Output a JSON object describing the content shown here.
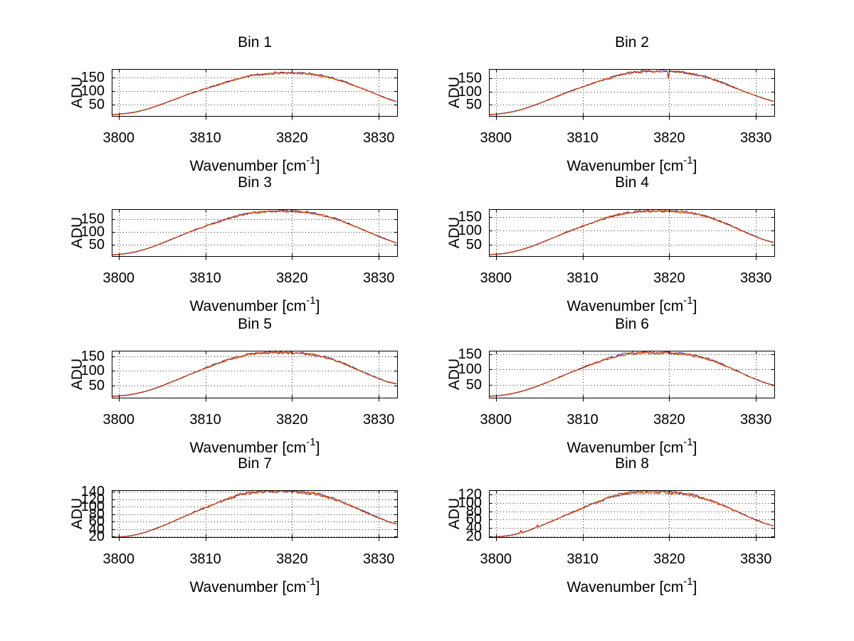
{
  "style": {
    "background": "#ffffff",
    "axis_color": "#000000",
    "grid_color": "#3c3c3c",
    "line_color_primary": "#e4731c",
    "line_color_secondary": "#c2371a",
    "line_color_under": "#2a2a9a"
  },
  "chart_data": {
    "type": "line",
    "layout": "4 rows x 2 columns grid of subplots",
    "grid": "dotted, on",
    "legend": "none",
    "ylabel": "ADU",
    "xlabel": "Wavenumber [cm^-1]",
    "xlabel_parts": [
      "Wavenumber [cm",
      "-1",
      "]"
    ],
    "xticks": [
      3800,
      3810,
      3820,
      3830
    ],
    "xlim": [
      3799.2,
      3832.2
    ],
    "x": [
      3799.2,
      3800,
      3801,
      3802,
      3803,
      3804,
      3805,
      3806,
      3807,
      3808,
      3809,
      3810,
      3811,
      3812,
      3813,
      3814,
      3815,
      3816,
      3817,
      3818,
      3819,
      3820,
      3821,
      3822,
      3823,
      3824,
      3825,
      3826,
      3827,
      3828,
      3829,
      3830,
      3831,
      3832
    ],
    "charts": [
      {
        "title": "Bin 1",
        "yticks": [
          50,
          100,
          150
        ],
        "ylim": [
          5,
          181
        ],
        "y": [
          12,
          14,
          17,
          22,
          30,
          40,
          51,
          63,
          75,
          87,
          98,
          108,
          118,
          128,
          138,
          147,
          154,
          160,
          163,
          165,
          166,
          166,
          165,
          163,
          158,
          152,
          144,
          134,
          122,
          110,
          97,
          84,
          71,
          61
        ]
      },
      {
        "title": "Bin 2",
        "yticks": [
          50,
          100,
          150
        ],
        "ylim": [
          5,
          186
        ],
        "y": [
          12,
          14,
          18,
          24,
          32,
          43,
          55,
          68,
          81,
          94,
          106,
          118,
          129,
          140,
          150,
          160,
          168,
          173,
          176,
          178,
          178,
          177,
          175,
          171,
          165,
          157,
          147,
          135,
          122,
          109,
          96,
          84,
          73,
          63
        ],
        "spikes": [
          {
            "x": 3819.9,
            "y": 150
          }
        ]
      },
      {
        "title": "Bin 3",
        "yticks": [
          50,
          100,
          150
        ],
        "ylim": [
          5,
          187
        ],
        "y": [
          12,
          14,
          18,
          24,
          33,
          44,
          57,
          70,
          84,
          97,
          110,
          122,
          133,
          144,
          154,
          163,
          170,
          175,
          178,
          180,
          180,
          179,
          177,
          174,
          168,
          160,
          150,
          138,
          125,
          111,
          97,
          83,
          70,
          58
        ]
      },
      {
        "title": "Bin 4",
        "yticks": [
          50,
          100,
          150
        ],
        "ylim": [
          5,
          178
        ],
        "y": [
          12,
          14,
          17,
          23,
          31,
          41,
          53,
          66,
          79,
          92,
          104,
          116,
          127,
          138,
          148,
          157,
          164,
          168,
          170,
          170,
          170,
          170,
          169,
          167,
          162,
          154,
          144,
          132,
          119,
          105,
          91,
          78,
          66,
          57
        ]
      },
      {
        "title": "Bin 5",
        "yticks": [
          50,
          100,
          150
        ],
        "ylim": [
          5,
          169
        ],
        "y": [
          12,
          13,
          16,
          21,
          28,
          37,
          48,
          60,
          72,
          85,
          97,
          109,
          120,
          131,
          141,
          150,
          156,
          160,
          162,
          162,
          162,
          161,
          160,
          157,
          152,
          145,
          135,
          124,
          111,
          98,
          85,
          73,
          62,
          55
        ]
      },
      {
        "title": "Bin 6",
        "yticks": [
          50,
          100,
          150
        ],
        "ylim": [
          5,
          161
        ],
        "y": [
          12,
          13,
          16,
          21,
          28,
          37,
          47,
          58,
          70,
          82,
          94,
          105,
          116,
          126,
          136,
          144,
          150,
          153,
          154,
          154,
          154,
          153,
          152,
          149,
          144,
          137,
          128,
          117,
          105,
          92,
          79,
          67,
          56,
          48
        ]
      },
      {
        "title": "Bin 7",
        "yticks": [
          20,
          40,
          60,
          80,
          100,
          120,
          140
        ],
        "ylim": [
          17,
          144
        ],
        "y": [
          18,
          19,
          21,
          25,
          31,
          39,
          48,
          58,
          68,
          78,
          88,
          97,
          106,
          115,
          124,
          131,
          136,
          139,
          141,
          141,
          141,
          140,
          139,
          136,
          132,
          126,
          119,
          110,
          100,
          90,
          80,
          70,
          61,
          54
        ]
      },
      {
        "title": "Bin 8",
        "yticks": [
          20,
          40,
          60,
          80,
          100,
          120
        ],
        "ylim": [
          16,
          131
        ],
        "y": [
          17,
          18,
          20,
          23,
          28,
          35,
          43,
          52,
          61,
          70,
          79,
          88,
          96,
          104,
          112,
          118,
          123,
          126,
          127,
          127,
          127,
          126,
          124,
          121,
          117,
          111,
          104,
          96,
          87,
          77,
          68,
          59,
          51,
          45
        ],
        "spikes": [
          {
            "x": 3802.9,
            "y": 34
          },
          {
            "x": 3804.8,
            "y": 47
          }
        ]
      }
    ]
  }
}
